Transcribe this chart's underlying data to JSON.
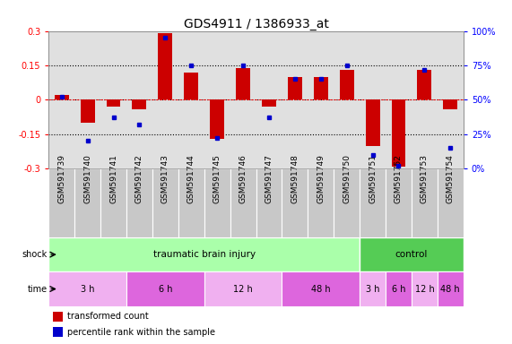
{
  "title": "GDS4911 / 1386933_at",
  "samples": [
    "GSM591739",
    "GSM591740",
    "GSM591741",
    "GSM591742",
    "GSM591743",
    "GSM591744",
    "GSM591745",
    "GSM591746",
    "GSM591747",
    "GSM591748",
    "GSM591749",
    "GSM591750",
    "GSM591751",
    "GSM591752",
    "GSM591753",
    "GSM591754"
  ],
  "bar_values": [
    0.02,
    -0.1,
    -0.03,
    -0.04,
    0.29,
    0.12,
    -0.17,
    0.14,
    -0.03,
    0.1,
    0.1,
    0.13,
    -0.2,
    -0.29,
    0.13,
    -0.04
  ],
  "dot_values": [
    52,
    20,
    37,
    32,
    95,
    75,
    22,
    75,
    37,
    65,
    65,
    75,
    10,
    2,
    72,
    15
  ],
  "ylim": [
    -0.3,
    0.3
  ],
  "y2lim": [
    0,
    100
  ],
  "yticks": [
    -0.3,
    -0.15,
    0.0,
    0.15,
    0.3
  ],
  "y2ticks": [
    0,
    25,
    50,
    75,
    100
  ],
  "ytick_labels": [
    "-0.3",
    "-0.15",
    "0",
    "0.15",
    "0.3"
  ],
  "y2tick_labels": [
    "0%",
    "25%",
    "50%",
    "75%",
    "100%"
  ],
  "hlines": [
    -0.15,
    0.0,
    0.15
  ],
  "bar_color": "#cc0000",
  "dot_color": "#0000cc",
  "bg_color": "#e0e0e0",
  "shock_groups": [
    {
      "label": "traumatic brain injury",
      "start": 0,
      "end": 11,
      "color": "#aaffaa"
    },
    {
      "label": "control",
      "start": 12,
      "end": 15,
      "color": "#55cc55"
    }
  ],
  "time_groups": [
    {
      "label": "3 h",
      "start": 0,
      "end": 3,
      "color": "#f0b0f0"
    },
    {
      "label": "6 h",
      "start": 4,
      "end": 7,
      "color": "#dd66dd"
    },
    {
      "label": "12 h",
      "start": 8,
      "end": 11,
      "color": "#f0b0f0"
    },
    {
      "label": "3 h",
      "start": 12,
      "end": 12,
      "color": "#f0b0f0"
    },
    {
      "label": "6 h",
      "start": 13,
      "end": 13,
      "color": "#dd66dd"
    },
    {
      "label": "12 h",
      "start": 14,
      "end": 14,
      "color": "#f0b0f0"
    },
    {
      "label": "48 h",
      "start": 15,
      "end": 15,
      "color": "#dd66dd"
    }
  ],
  "legend_bar_label": "transformed count",
  "legend_dot_label": "percentile rank within the sample",
  "shock_label": "shock",
  "time_label": "time",
  "title_fontsize": 10,
  "tick_fontsize": 7,
  "sample_fontsize": 6.5
}
